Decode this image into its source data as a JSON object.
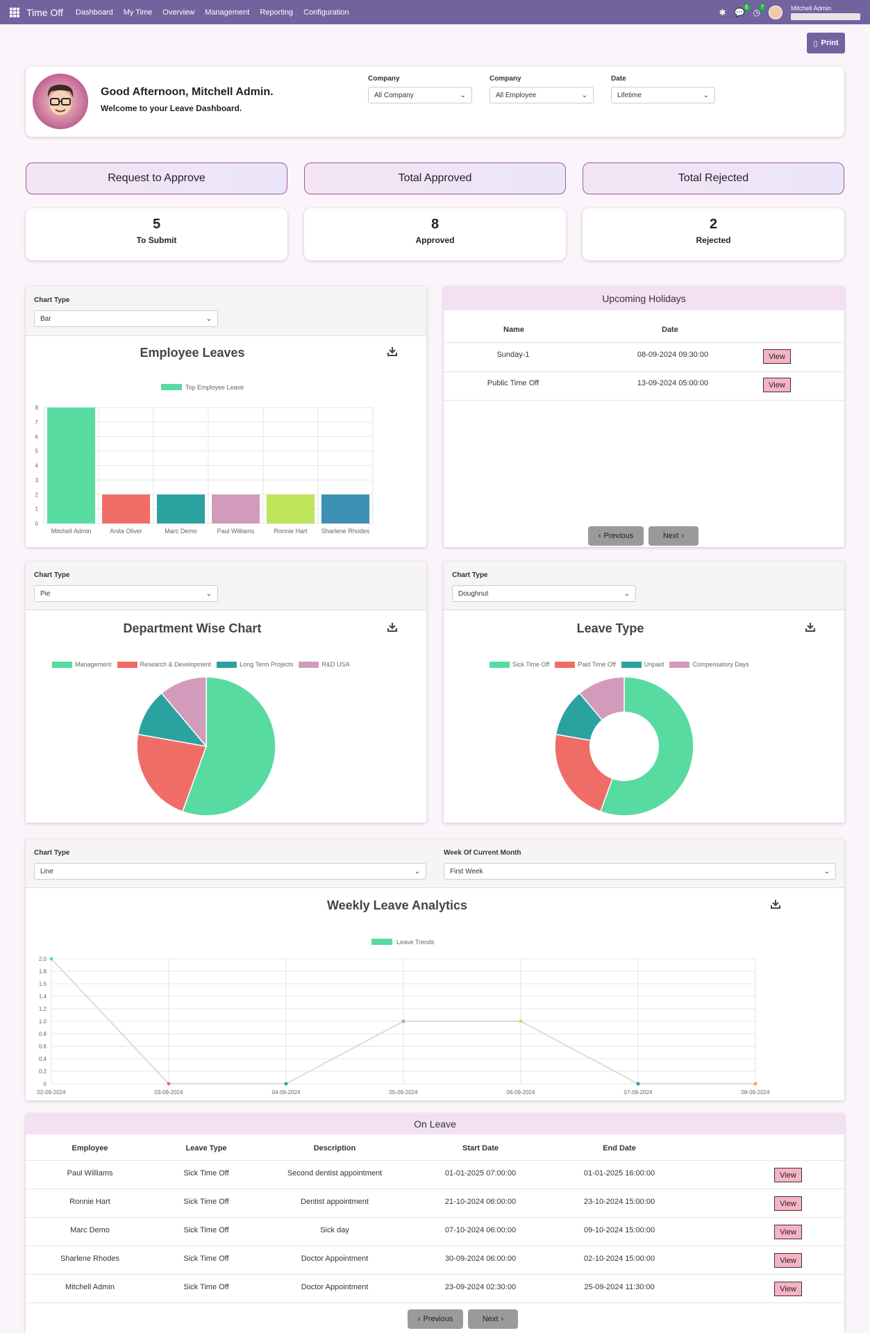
{
  "nav": {
    "app_title": "Time Off",
    "items": [
      "Dashboard",
      "My Time",
      "Overview",
      "Management",
      "Reporting",
      "Configuration"
    ],
    "messages_count": "6",
    "activities_count": "7",
    "user_name": "Mitchell Admin"
  },
  "print_label": "Print",
  "header": {
    "greeting": "Good Afternoon, Mitchell Admin.",
    "welcome": "Welcome to your Leave Dashboard.",
    "filters": [
      {
        "label": "Company",
        "value": "All Company"
      },
      {
        "label": "Company",
        "value": "All Employee"
      },
      {
        "label": "Date",
        "value": "Lifetime"
      }
    ]
  },
  "stats": [
    {
      "title": "Request to Approve",
      "value": "5",
      "label": "To Submit"
    },
    {
      "title": "Total Approved",
      "value": "8",
      "label": "Approved"
    },
    {
      "title": "Total Rejected",
      "value": "2",
      "label": "Rejected"
    }
  ],
  "employee_chart": {
    "chart_type_label": "Chart Type",
    "chart_type_value": "Bar",
    "title": "Employee Leaves"
  },
  "holidays": {
    "title": "Upcoming Holidays",
    "col_name": "Name",
    "col_date": "Date",
    "rows": [
      {
        "name": "Sunday-1",
        "date": "08-09-2024 09:30:00",
        "action": "View"
      },
      {
        "name": "Public Time Off",
        "date": "13-09-2024 05:00:00",
        "action": "View"
      }
    ],
    "prev_label": "Previous",
    "next_label": "Next"
  },
  "department_chart": {
    "chart_type_label": "Chart Type",
    "chart_type_value": "Pie",
    "title": "Department Wise Chart"
  },
  "leave_type_chart": {
    "chart_type_label": "Chart Type",
    "chart_type_value": "Doughnut",
    "title": "Leave Type"
  },
  "weekly_chart": {
    "chart_type_label": "Chart Type",
    "chart_type_value": "Line",
    "week_label": "Week Of Current Month",
    "week_value": "First Week",
    "title": "Weekly Leave Analytics"
  },
  "on_leave": {
    "title": "On Leave",
    "columns": [
      "Employee",
      "Leave Type",
      "Description",
      "Start Date",
      "End Date"
    ],
    "rows": [
      {
        "employee": "Paul Williams",
        "type": "Sick Time Off",
        "description": "Second dentist appointment",
        "start": "01-01-2025 07:00:00",
        "end": "01-01-2025 16:00:00",
        "action": "View"
      },
      {
        "employee": "Ronnie Hart",
        "type": "Sick Time Off",
        "description": "Dentist appointment",
        "start": "21-10-2024 06:00:00",
        "end": "23-10-2024 15:00:00",
        "action": "View"
      },
      {
        "employee": "Marc Demo",
        "type": "Sick Time Off",
        "description": "Sick day",
        "start": "07-10-2024 06:00:00",
        "end": "09-10-2024 15:00:00",
        "action": "View"
      },
      {
        "employee": "Sharlene Rhodes",
        "type": "Sick Time Off",
        "description": "Doctor Appointment",
        "start": "30-09-2024 06:00:00",
        "end": "02-10-2024 15:00:00",
        "action": "View"
      },
      {
        "employee": "Mitchell Admin",
        "type": "Sick Time Off",
        "description": "Doctor Appointment",
        "start": "23-09-2024 02:30:00",
        "end": "25-09-2024 11:30:00",
        "action": "View"
      }
    ],
    "prev_label": "Previous",
    "next_label": "Next"
  },
  "chart_data": [
    {
      "type": "bar",
      "title": "Employee Leaves",
      "categories": [
        "Mitchell Admin",
        "Anita Oliver",
        "Marc Demo",
        "Paul Williams",
        "Ronnie Hart",
        "Sharlene Rhodes"
      ],
      "series": [
        {
          "name": "Top Employee Leave",
          "values": [
            8,
            2,
            2,
            2,
            2,
            2
          ]
        }
      ],
      "colors": [
        "#58dba1",
        "#f06d67",
        "#2aa2a0",
        "#d29bbb",
        "#bde65a",
        "#3c90b2"
      ],
      "ylim": [
        0,
        8
      ],
      "yticks": [
        0,
        1,
        2,
        3,
        4,
        5,
        6,
        7,
        8
      ],
      "legend": "top",
      "grid": true
    },
    {
      "type": "pie",
      "title": "Department Wise Chart",
      "labels": [
        "Management",
        "Research & Development",
        "Long Term Projects",
        "R&D USA"
      ],
      "values": [
        5,
        2,
        1,
        1
      ],
      "colors": [
        "#58dba1",
        "#f06d67",
        "#2aa2a0",
        "#d29bbb"
      ],
      "legend": "top"
    },
    {
      "type": "pie",
      "variant": "doughnut",
      "title": "Leave Type",
      "labels": [
        "Sick Time Off",
        "Paid Time Off",
        "Unpaid",
        "Compensatory Days"
      ],
      "values": [
        5,
        2,
        1,
        1
      ],
      "colors": [
        "#58dba1",
        "#f06d67",
        "#2aa2a0",
        "#d29bbb"
      ],
      "legend": "top"
    },
    {
      "type": "line",
      "title": "Weekly Leave Analytics",
      "x": [
        "02-09-2024",
        "03-09-2024",
        "04-09-2024",
        "05-09-2024",
        "06-09-2024",
        "07-09-2024",
        "08-09-2024"
      ],
      "series": [
        {
          "name": "Leave Trends",
          "values": [
            2,
            0,
            0,
            1,
            1,
            0,
            0
          ]
        }
      ],
      "point_colors": [
        "#58dba1",
        "#f06d67",
        "#2aa2a0",
        "#d29bbb",
        "#bde65a",
        "#3c90b2",
        "#f6a14d"
      ],
      "ylim": [
        0,
        2
      ],
      "yticks": [
        "0",
        "0.2",
        "0.4",
        "0.6",
        "0.8",
        "1.0",
        "1.2",
        "1.4",
        "1.6",
        "1.8",
        "2.0"
      ],
      "legend": "top",
      "grid": true
    }
  ]
}
